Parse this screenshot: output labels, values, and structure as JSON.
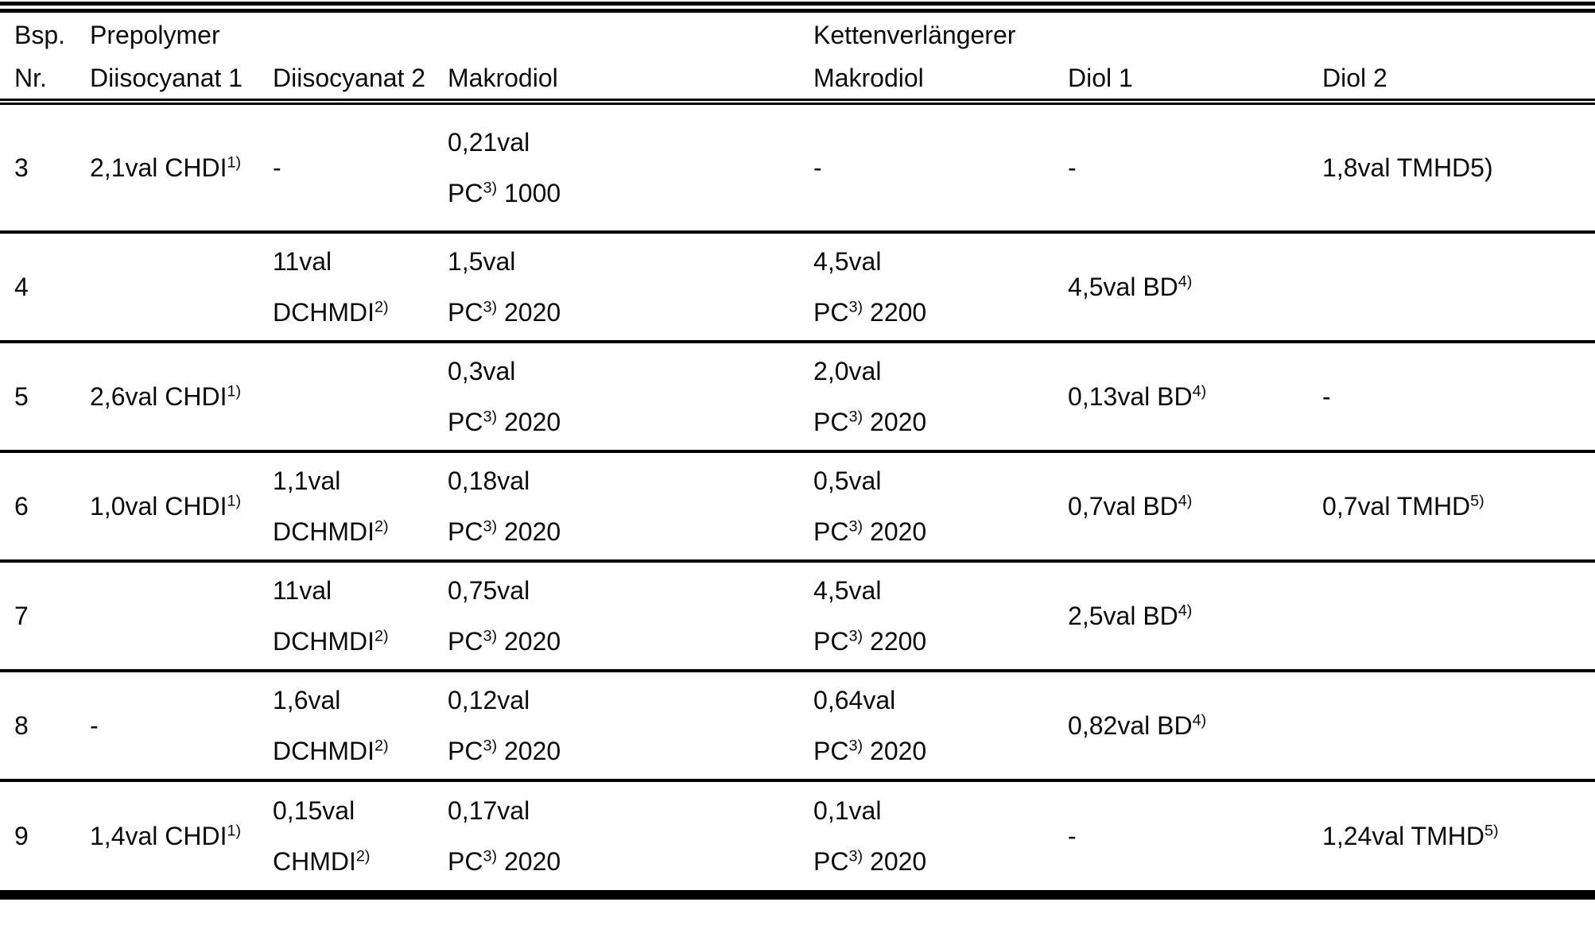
{
  "table": {
    "header": {
      "bsp": "Bsp.",
      "nr": "Nr.",
      "prepolymer_group": "Prepolymer",
      "kettenverlaengerer_group": "Kettenverlängerer",
      "columns": [
        "Diisocyanat 1",
        "Diisocyanat 2",
        "Makrodiol",
        "Makrodiol",
        "Diol 1",
        "Diol 2"
      ]
    },
    "rows": [
      {
        "nr": "3",
        "cells": [
          "2,1val CHDI^{1)}",
          "-",
          "0,21val\nPC^{3)} 1000",
          "-",
          "-",
          "1,8val TMHD5)"
        ]
      },
      {
        "nr": "4",
        "cells": [
          "",
          "11val\nDCHMDI^{2)}",
          "1,5val\nPC^{3)} 2020",
          "4,5val\nPC^{3)} 2200",
          "4,5val BD^{4)}",
          ""
        ]
      },
      {
        "nr": "5",
        "cells": [
          "2,6val CHDI^{1)}",
          "",
          "0,3val\nPC^{3)} 2020",
          "2,0val\nPC^{3)} 2020",
          "0,13val BD^{4)}",
          "-"
        ]
      },
      {
        "nr": "6",
        "cells": [
          "1,0val CHDI^{1)}",
          "1,1val\nDCHMDI^{2)}",
          "0,18val\nPC^{3)} 2020",
          "0,5val\nPC^{3)} 2020",
          "0,7val BD^{4)}",
          "0,7val TMHD^{5)}"
        ]
      },
      {
        "nr": "7",
        "cells": [
          "",
          "11val\nDCHMDI^{2)}",
          "0,75val\nPC^{3)} 2020",
          "4,5val\nPC^{3)} 2200",
          "2,5val BD^{4)}",
          ""
        ]
      },
      {
        "nr": "8",
        "cells": [
          "-",
          "1,6val\nDCHMDI^{2)}",
          "0,12val\nPC^{3)} 2020",
          "0,64val\nPC^{3)} 2020",
          "0,82val BD^{4)}",
          ""
        ]
      },
      {
        "nr": "9",
        "cells": [
          "1,4val CHDI^{1)}",
          "0,15val\nCHMDI^{2)}",
          "0,17val\nPC^{3)} 2020",
          "0,1val\nPC^{3)} 2020",
          "-",
          "1,24val TMHD^{5)}"
        ]
      }
    ]
  }
}
